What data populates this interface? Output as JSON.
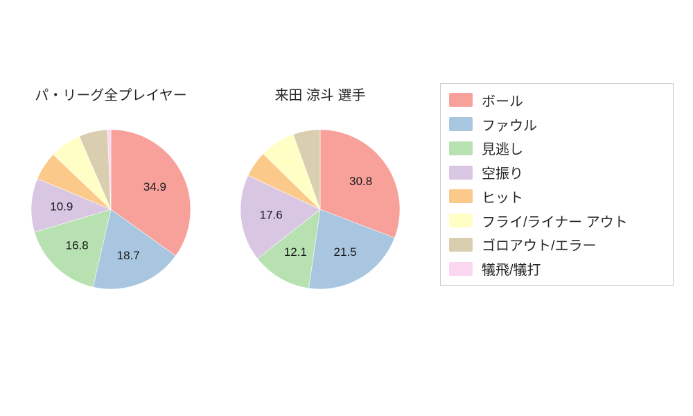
{
  "chart_data": [
    {
      "type": "pie",
      "title": "パ・リーグ全プレイヤー",
      "start_angle_deg": 0,
      "direction": "clockwise",
      "slices": [
        {
          "name": "ボール",
          "value": 34.9,
          "label": "34.9"
        },
        {
          "name": "ファウル",
          "value": 18.7,
          "label": "18.7"
        },
        {
          "name": "見逃し",
          "value": 16.8,
          "label": "16.8"
        },
        {
          "name": "空振り",
          "value": 10.9,
          "label": "10.9"
        },
        {
          "name": "ヒット",
          "value": 5.8,
          "label": ""
        },
        {
          "name": "フライ/ライナー アウト",
          "value": 6.4,
          "label": ""
        },
        {
          "name": "ゴロアウト/エラー",
          "value": 5.8,
          "label": ""
        },
        {
          "name": "犠飛/犠打",
          "value": 0.7,
          "label": ""
        }
      ]
    },
    {
      "type": "pie",
      "title": "来田 涼斗  選手",
      "start_angle_deg": 0,
      "direction": "clockwise",
      "slices": [
        {
          "name": "ボール",
          "value": 30.8,
          "label": "30.8"
        },
        {
          "name": "ファウル",
          "value": 21.5,
          "label": "21.5"
        },
        {
          "name": "見逃し",
          "value": 12.1,
          "label": "12.1"
        },
        {
          "name": "空振り",
          "value": 17.6,
          "label": "17.6"
        },
        {
          "name": "ヒット",
          "value": 5.3,
          "label": ""
        },
        {
          "name": "フライ/ライナー アウト",
          "value": 7.2,
          "label": ""
        },
        {
          "name": "ゴロアウト/エラー",
          "value": 5.5,
          "label": ""
        },
        {
          "name": "犠飛/犠打",
          "value": 0.0,
          "label": ""
        }
      ]
    }
  ],
  "legend": {
    "position": "right",
    "items": [
      {
        "label": "ボール",
        "color": "#f8a09a"
      },
      {
        "label": "ファウル",
        "color": "#a8c6e0"
      },
      {
        "label": "見逃し",
        "color": "#b7e1b1"
      },
      {
        "label": "空振り",
        "color": "#d8c6e2"
      },
      {
        "label": "ヒット",
        "color": "#fbc98a"
      },
      {
        "label": "フライ/ライナー アウト",
        "color": "#ffffc5"
      },
      {
        "label": "ゴロアウト/エラー",
        "color": "#d9cfb0"
      },
      {
        "label": "犠飛/犠打",
        "color": "#fbd7ef"
      }
    ]
  },
  "style": {
    "background": "#ffffff",
    "text_color": "#262626",
    "legend_border": "#cccccc"
  }
}
